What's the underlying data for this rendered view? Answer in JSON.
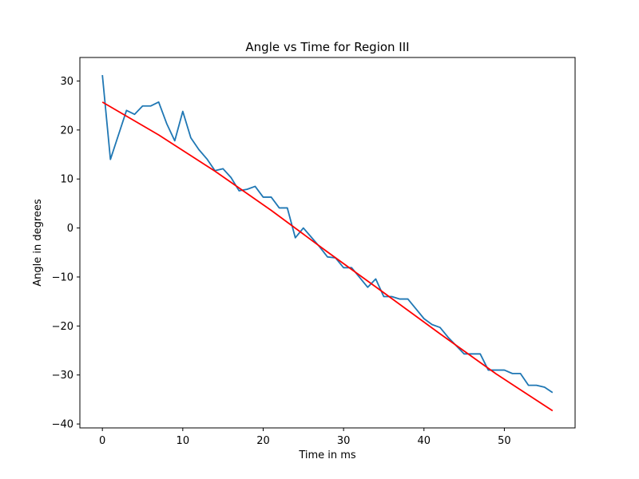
{
  "chart_data": {
    "type": "line",
    "title": "Angle vs Time for Region III",
    "xlabel": "Time in ms",
    "ylabel": "Angle in degrees",
    "xlim": [
      -2.8,
      58.8
    ],
    "ylim": [
      -40.8,
      34.8
    ],
    "xticks": [
      0,
      10,
      20,
      30,
      40,
      50
    ],
    "yticks": [
      -40,
      -30,
      -20,
      -10,
      0,
      10,
      20,
      30
    ],
    "xtick_labels": [
      "0",
      "10",
      "20",
      "30",
      "40",
      "50"
    ],
    "ytick_labels": [
      "−40",
      "−30",
      "−20",
      "−10",
      "0",
      "10",
      "20",
      "30"
    ],
    "grid": false,
    "series": [
      {
        "color": "#1f77b4",
        "x": [
          0,
          1,
          2,
          3,
          4,
          5,
          6,
          7,
          8,
          9,
          10,
          11,
          12,
          13,
          14,
          15,
          16,
          17,
          18,
          19,
          20,
          21,
          22,
          23,
          24,
          25,
          26,
          27,
          28,
          29,
          30,
          31,
          32,
          33,
          34,
          35,
          36,
          37,
          38,
          39,
          40,
          41,
          42,
          43,
          44,
          45,
          46,
          47,
          48,
          49,
          50,
          51,
          52,
          53,
          54,
          55,
          56
        ],
        "y": [
          31.2,
          14.0,
          19.0,
          24.0,
          23.2,
          24.9,
          24.9,
          25.7,
          21.3,
          17.8,
          23.8,
          18.4,
          16.0,
          14.1,
          11.7,
          12.1,
          10.3,
          7.6,
          7.9,
          8.5,
          6.3,
          6.3,
          4.1,
          4.1,
          -2.0,
          0.0,
          -1.9,
          -3.8,
          -5.9,
          -6.1,
          -8.1,
          -8.1,
          -10.1,
          -12.1,
          -10.4,
          -14.0,
          -14.0,
          -14.5,
          -14.5,
          -16.5,
          -18.5,
          -19.7,
          -20.3,
          -22.3,
          -24.0,
          -25.7,
          -25.7,
          -25.7,
          -29.0,
          -29.0,
          -29.0,
          -29.7,
          -29.7,
          -32.1,
          -32.1,
          -32.5,
          -33.6
        ]
      },
      {
        "color": "#ff0000",
        "x": [
          0,
          7,
          14,
          21,
          28,
          35,
          42,
          49,
          56
        ],
        "y": [
          25.7,
          19.0,
          11.6,
          3.6,
          -4.9,
          -13.2,
          -21.6,
          -29.8,
          -37.3
        ]
      }
    ]
  }
}
